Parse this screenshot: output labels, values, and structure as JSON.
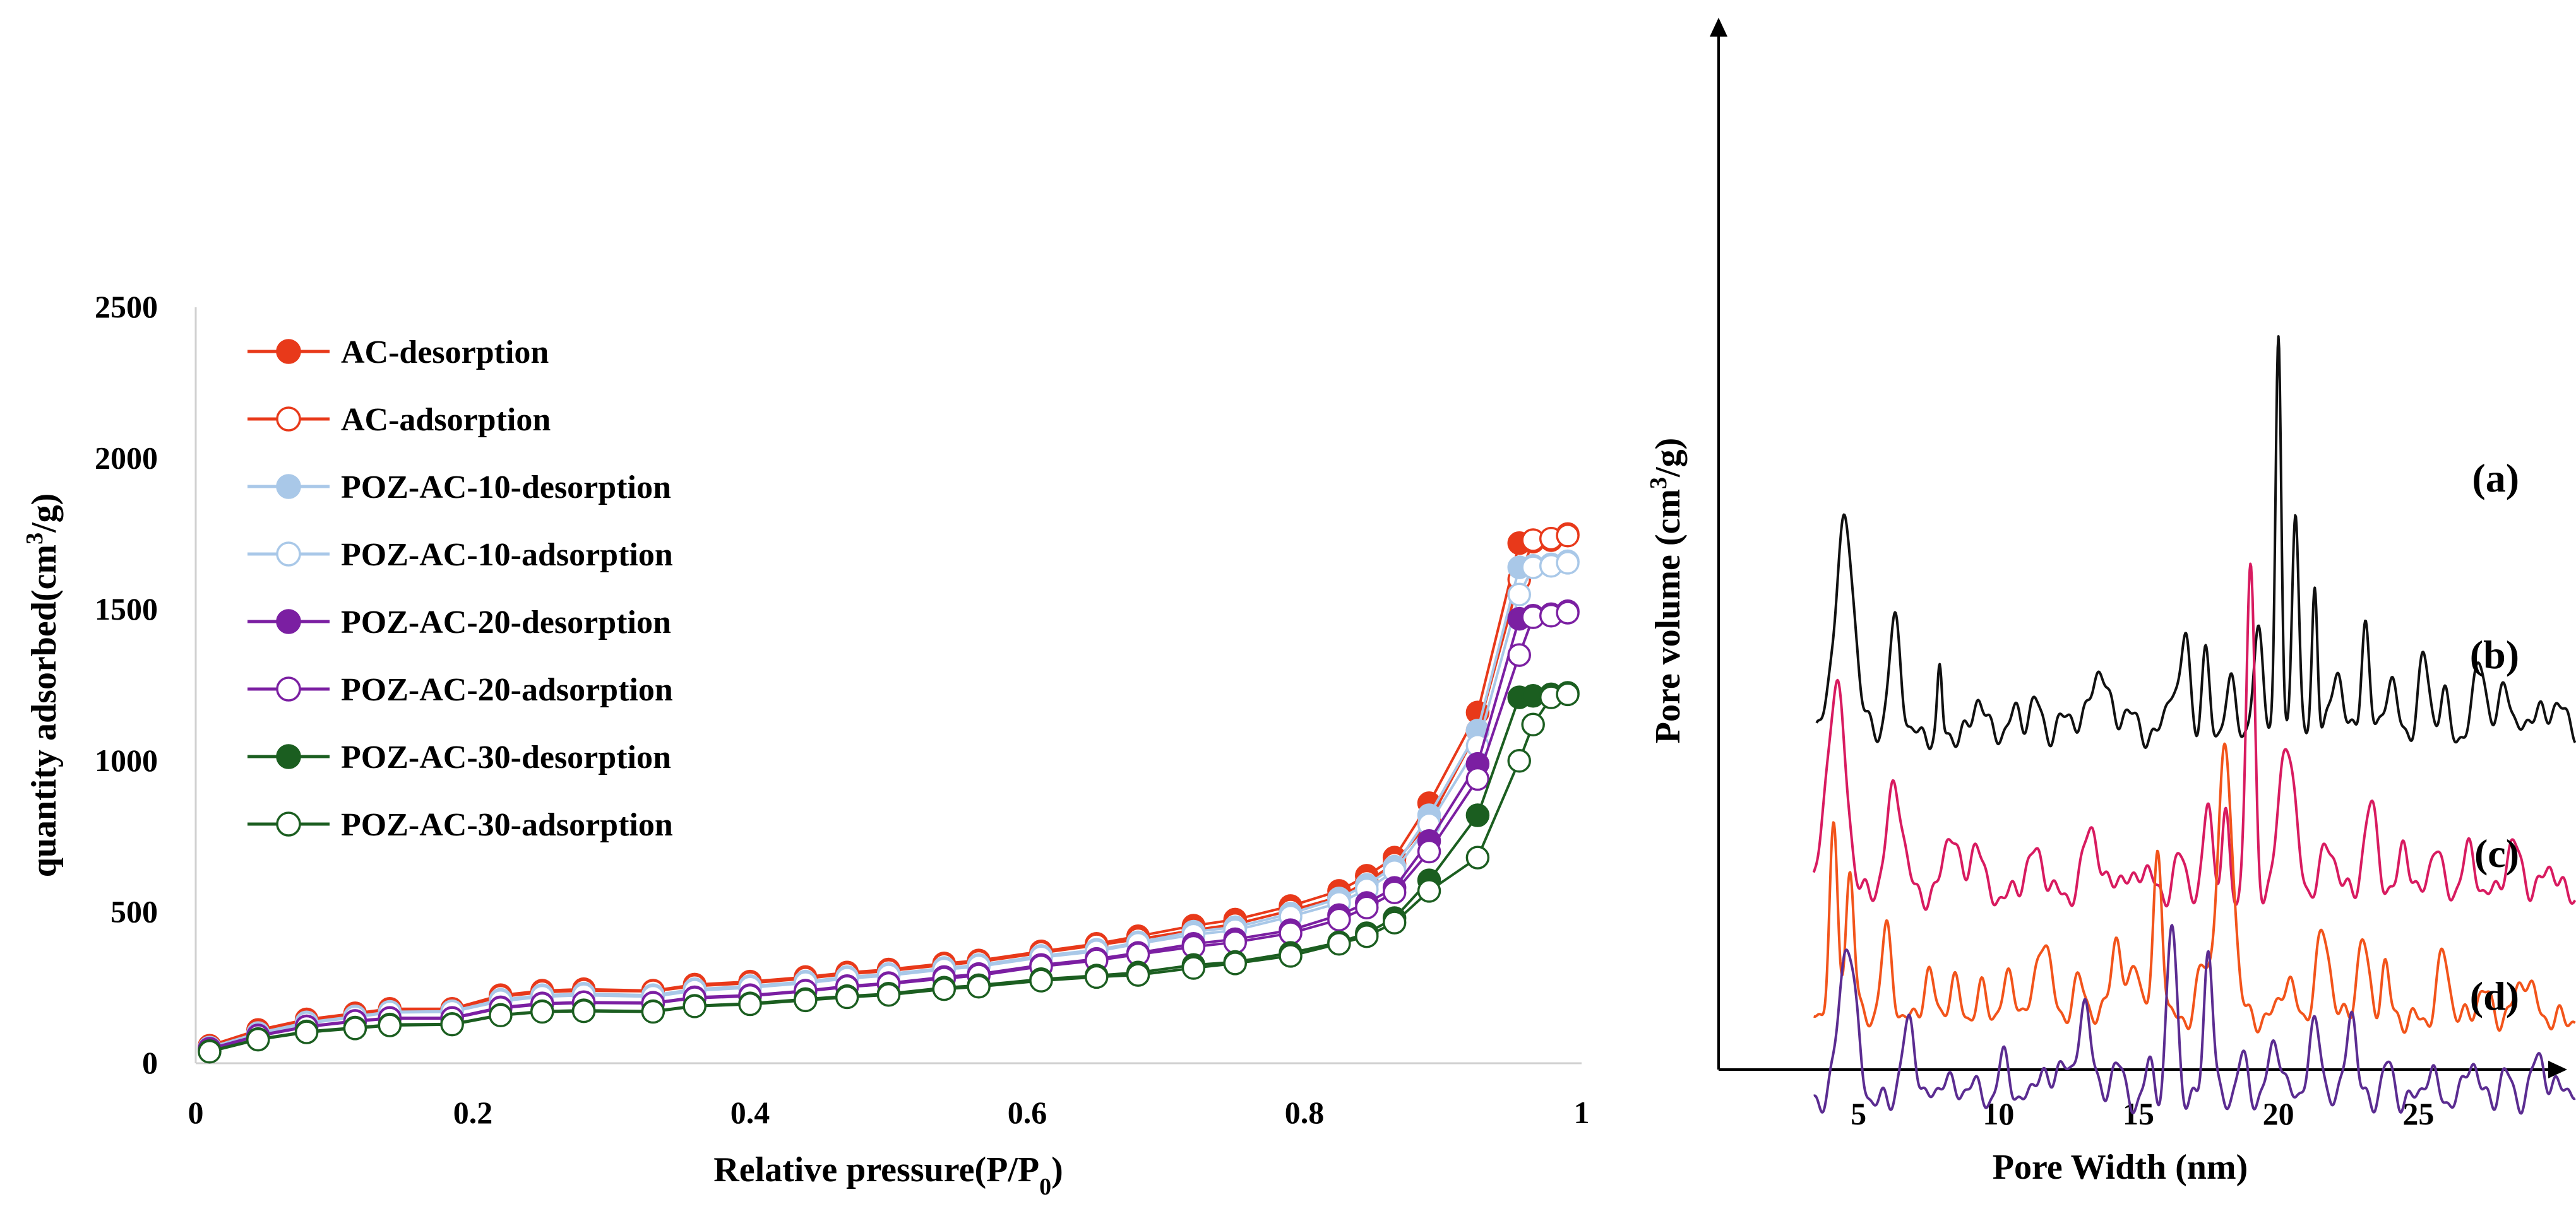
{
  "chart_data": [
    {
      "type": "line",
      "title": "",
      "xlabel": "Relative pressure(P/P",
      "xlabel_sub": "0",
      "xlabel_end": ")",
      "ylabel": "quantity adsorbed(cm",
      "ylabel_sup": "3",
      "ylabel_end": "/g)",
      "xlim": [
        0,
        1
      ],
      "ylim": [
        0,
        2500
      ],
      "xticks": [
        0,
        0.2,
        0.4,
        0.6,
        0.8,
        1
      ],
      "xtick_labels": [
        "0",
        "0.2",
        "0.4",
        "0.6",
        "0.8",
        "1"
      ],
      "yticks": [
        0,
        500,
        1000,
        1500,
        2000,
        2500
      ],
      "ytick_labels": [
        "0",
        "500",
        "1000",
        "1500",
        "2000",
        "2500"
      ],
      "grid": false,
      "legend": "top-left",
      "x": [
        0.01,
        0.045,
        0.08,
        0.115,
        0.14,
        0.185,
        0.22,
        0.25,
        0.28,
        0.33,
        0.36,
        0.4,
        0.44,
        0.47,
        0.5,
        0.54,
        0.565,
        0.61,
        0.65,
        0.68,
        0.72,
        0.75,
        0.79,
        0.825,
        0.845,
        0.865,
        0.89,
        0.925,
        0.955,
        0.965,
        0.978,
        0.99
      ],
      "series": [
        {
          "name": "AC-desorption",
          "color": "#e8391a",
          "marker": "filled",
          "values": [
            58,
            110,
            145,
            165,
            180,
            180,
            225,
            240,
            245,
            240,
            260,
            270,
            285,
            300,
            310,
            330,
            340,
            370,
            395,
            420,
            455,
            475,
            520,
            570,
            620,
            680,
            860,
            1160,
            1720,
            1725,
            1730,
            1750
          ]
        },
        {
          "name": "AC-adsorption",
          "color": "#e8391a",
          "marker": "open",
          "values": [
            55,
            105,
            140,
            160,
            175,
            178,
            220,
            235,
            240,
            238,
            255,
            265,
            280,
            295,
            305,
            325,
            335,
            365,
            390,
            410,
            440,
            460,
            505,
            550,
            600,
            660,
            800,
            1100,
            1600,
            1730,
            1735,
            1745
          ]
        },
        {
          "name": "POZ-AC-10-desorption",
          "color": "#a9c8e8",
          "marker": "filled",
          "values": [
            52,
            100,
            135,
            155,
            170,
            172,
            210,
            225,
            230,
            225,
            245,
            255,
            270,
            285,
            295,
            315,
            325,
            355,
            375,
            400,
            435,
            450,
            495,
            545,
            590,
            650,
            820,
            1100,
            1640,
            1645,
            1650,
            1660
          ]
        },
        {
          "name": "POZ-AC-10-adsorption",
          "color": "#a9c8e8",
          "marker": "open",
          "values": [
            50,
            98,
            132,
            152,
            168,
            170,
            205,
            220,
            225,
            220,
            240,
            250,
            265,
            280,
            290,
            310,
            320,
            350,
            370,
            395,
            425,
            440,
            485,
            530,
            575,
            635,
            790,
            1050,
            1550,
            1640,
            1645,
            1655
          ]
        },
        {
          "name": "POZ-AC-20-desorption",
          "color": "#7b1fa2",
          "marker": "filled",
          "values": [
            48,
            92,
            122,
            140,
            150,
            150,
            185,
            198,
            202,
            200,
            218,
            225,
            240,
            255,
            265,
            285,
            295,
            325,
            345,
            365,
            395,
            410,
            440,
            490,
            530,
            580,
            735,
            990,
            1470,
            1480,
            1485,
            1495
          ]
        },
        {
          "name": "POZ-AC-20-adsorption",
          "color": "#7b1fa2",
          "marker": "open",
          "values": [
            46,
            90,
            120,
            138,
            148,
            148,
            182,
            195,
            200,
            198,
            215,
            222,
            238,
            252,
            262,
            280,
            290,
            320,
            340,
            360,
            385,
            400,
            430,
            475,
            515,
            565,
            700,
            940,
            1350,
            1475,
            1480,
            1490
          ]
        },
        {
          "name": "POZ-AC-30-desorption",
          "color": "#1b5e20",
          "marker": "filled",
          "values": [
            40,
            80,
            105,
            118,
            128,
            130,
            160,
            172,
            175,
            172,
            190,
            198,
            212,
            222,
            230,
            250,
            258,
            278,
            290,
            300,
            325,
            335,
            365,
            400,
            430,
            480,
            605,
            820,
            1210,
            1215,
            1220,
            1225
          ]
        },
        {
          "name": "POZ-AC-30-adsorption",
          "color": "#1b5e20",
          "marker": "open",
          "values": [
            38,
            78,
            102,
            115,
            125,
            128,
            158,
            170,
            172,
            170,
            188,
            195,
            208,
            218,
            226,
            245,
            253,
            273,
            285,
            292,
            315,
            330,
            355,
            395,
            420,
            465,
            570,
            680,
            1000,
            1120,
            1210,
            1220
          ]
        }
      ]
    },
    {
      "type": "line",
      "title": "",
      "xlabel": "Pore Width (nm)",
      "ylabel": "Pore volume (cm",
      "ylabel_sup": "3",
      "ylabel_end": "/g)",
      "xlim": [
        0,
        30
      ],
      "xticks": [
        5,
        10,
        15,
        20,
        25
      ],
      "xtick_labels": [
        "5",
        "10",
        "15",
        "20",
        "25"
      ],
      "yticks": [],
      "grid": false,
      "legend": "inline-right",
      "series": [
        {
          "name": "(a)",
          "color": "#111111",
          "offset": 290,
          "peaks": [
            [
              4.5,
              150,
              0.35
            ],
            [
              6.3,
              80,
              0.22
            ],
            [
              7.9,
              45,
              0.08
            ],
            [
              9.3,
              28,
              0.2
            ],
            [
              10.6,
              15,
              0.25
            ],
            [
              11.3,
              24,
              0.2
            ],
            [
              12.5,
              14,
              0.3
            ],
            [
              13.6,
              48,
              0.3
            ],
            [
              14.6,
              18,
              0.25
            ],
            [
              16.2,
              36,
              0.2
            ],
            [
              16.7,
              72,
              0.15
            ],
            [
              17.4,
              55,
              0.14
            ],
            [
              18.3,
              35,
              0.2
            ],
            [
              19.3,
              72,
              0.18
            ],
            [
              20.0,
              285,
              0.1
            ],
            [
              20.6,
              162,
              0.12
            ],
            [
              21.3,
              110,
              0.1
            ],
            [
              22.1,
              48,
              0.2
            ],
            [
              23.1,
              84,
              0.14
            ],
            [
              24.0,
              42,
              0.2
            ],
            [
              25.2,
              54,
              0.2
            ],
            [
              25.9,
              30,
              0.15
            ],
            [
              27.2,
              58,
              0.2
            ],
            [
              28.1,
              42,
              0.18
            ],
            [
              29.2,
              20,
              0.25
            ],
            [
              30.0,
              28,
              0.2
            ]
          ]
        },
        {
          "name": "(b)",
          "color": "#d81b60",
          "offset": 545,
          "peaks": [
            [
              4.2,
              150,
              0.35
            ],
            [
              6.3,
              78,
              0.3
            ],
            [
              8.3,
              48,
              0.25
            ],
            [
              9.2,
              42,
              0.2
            ],
            [
              11.3,
              30,
              0.35
            ],
            [
              13.3,
              52,
              0.25
            ],
            [
              14.3,
              16,
              0.25
            ],
            [
              15.2,
              22,
              0.25
            ],
            [
              16.5,
              28,
              0.22
            ],
            [
              17.5,
              70,
              0.15
            ],
            [
              18.1,
              56,
              0.13
            ],
            [
              19.0,
              235,
              0.15
            ],
            [
              20.3,
              114,
              0.28
            ],
            [
              21.8,
              35,
              0.3
            ],
            [
              23.3,
              64,
              0.25
            ],
            [
              24.5,
              40,
              0.18
            ],
            [
              25.6,
              38,
              0.2
            ],
            [
              26.8,
              32,
              0.25
            ],
            [
              28.4,
              36,
              0.3
            ],
            [
              29.7,
              22,
              0.25
            ]
          ]
        },
        {
          "name": "(c)",
          "color": "#f2541b",
          "offset": 740,
          "peaks": [
            [
              4.1,
              135,
              0.15
            ],
            [
              4.7,
              110,
              0.15
            ],
            [
              6.0,
              62,
              0.2
            ],
            [
              7.5,
              32,
              0.2
            ],
            [
              8.4,
              26,
              0.2
            ],
            [
              9.4,
              20,
              0.2
            ],
            [
              10.4,
              28,
              0.25
            ],
            [
              11.6,
              60,
              0.25
            ],
            [
              12.9,
              26,
              0.25
            ],
            [
              14.2,
              60,
              0.2
            ],
            [
              14.9,
              44,
              0.18
            ],
            [
              15.7,
              120,
              0.16
            ],
            [
              17.3,
              36,
              0.2
            ],
            [
              18.1,
              190,
              0.28
            ],
            [
              20.3,
              28,
              0.25
            ],
            [
              21.6,
              62,
              0.25
            ],
            [
              23.0,
              58,
              0.2
            ],
            [
              23.8,
              40,
              0.15
            ],
            [
              25.9,
              48,
              0.2
            ],
            [
              27.3,
              20,
              0.25
            ],
            [
              28.8,
              30,
              0.3
            ]
          ]
        },
        {
          "name": "(d)",
          "color": "#5b2c91",
          "offset": 870,
          "peaks": [
            [
              4.6,
              115,
              0.3
            ],
            [
              6.8,
              55,
              0.25
            ],
            [
              8.1,
              20,
              0.2
            ],
            [
              9.0,
              16,
              0.2
            ],
            [
              10.2,
              30,
              0.22
            ],
            [
              11.5,
              25,
              0.2
            ],
            [
              12.3,
              35,
              0.2
            ],
            [
              13.1,
              75,
              0.22
            ],
            [
              14.2,
              30,
              0.2
            ],
            [
              15.4,
              26,
              0.16
            ],
            [
              16.2,
              125,
              0.18
            ],
            [
              17.5,
              112,
              0.16
            ],
            [
              18.7,
              30,
              0.2
            ],
            [
              19.9,
              42,
              0.25
            ],
            [
              21.3,
              52,
              0.25
            ],
            [
              22.6,
              68,
              0.18
            ],
            [
              23.9,
              26,
              0.2
            ],
            [
              25.4,
              20,
              0.25
            ],
            [
              26.9,
              30,
              0.22
            ],
            [
              28.1,
              20,
              0.2
            ],
            [
              29.3,
              34,
              0.22
            ],
            [
              30.2,
              12,
              0.3
            ]
          ]
        }
      ]
    }
  ]
}
